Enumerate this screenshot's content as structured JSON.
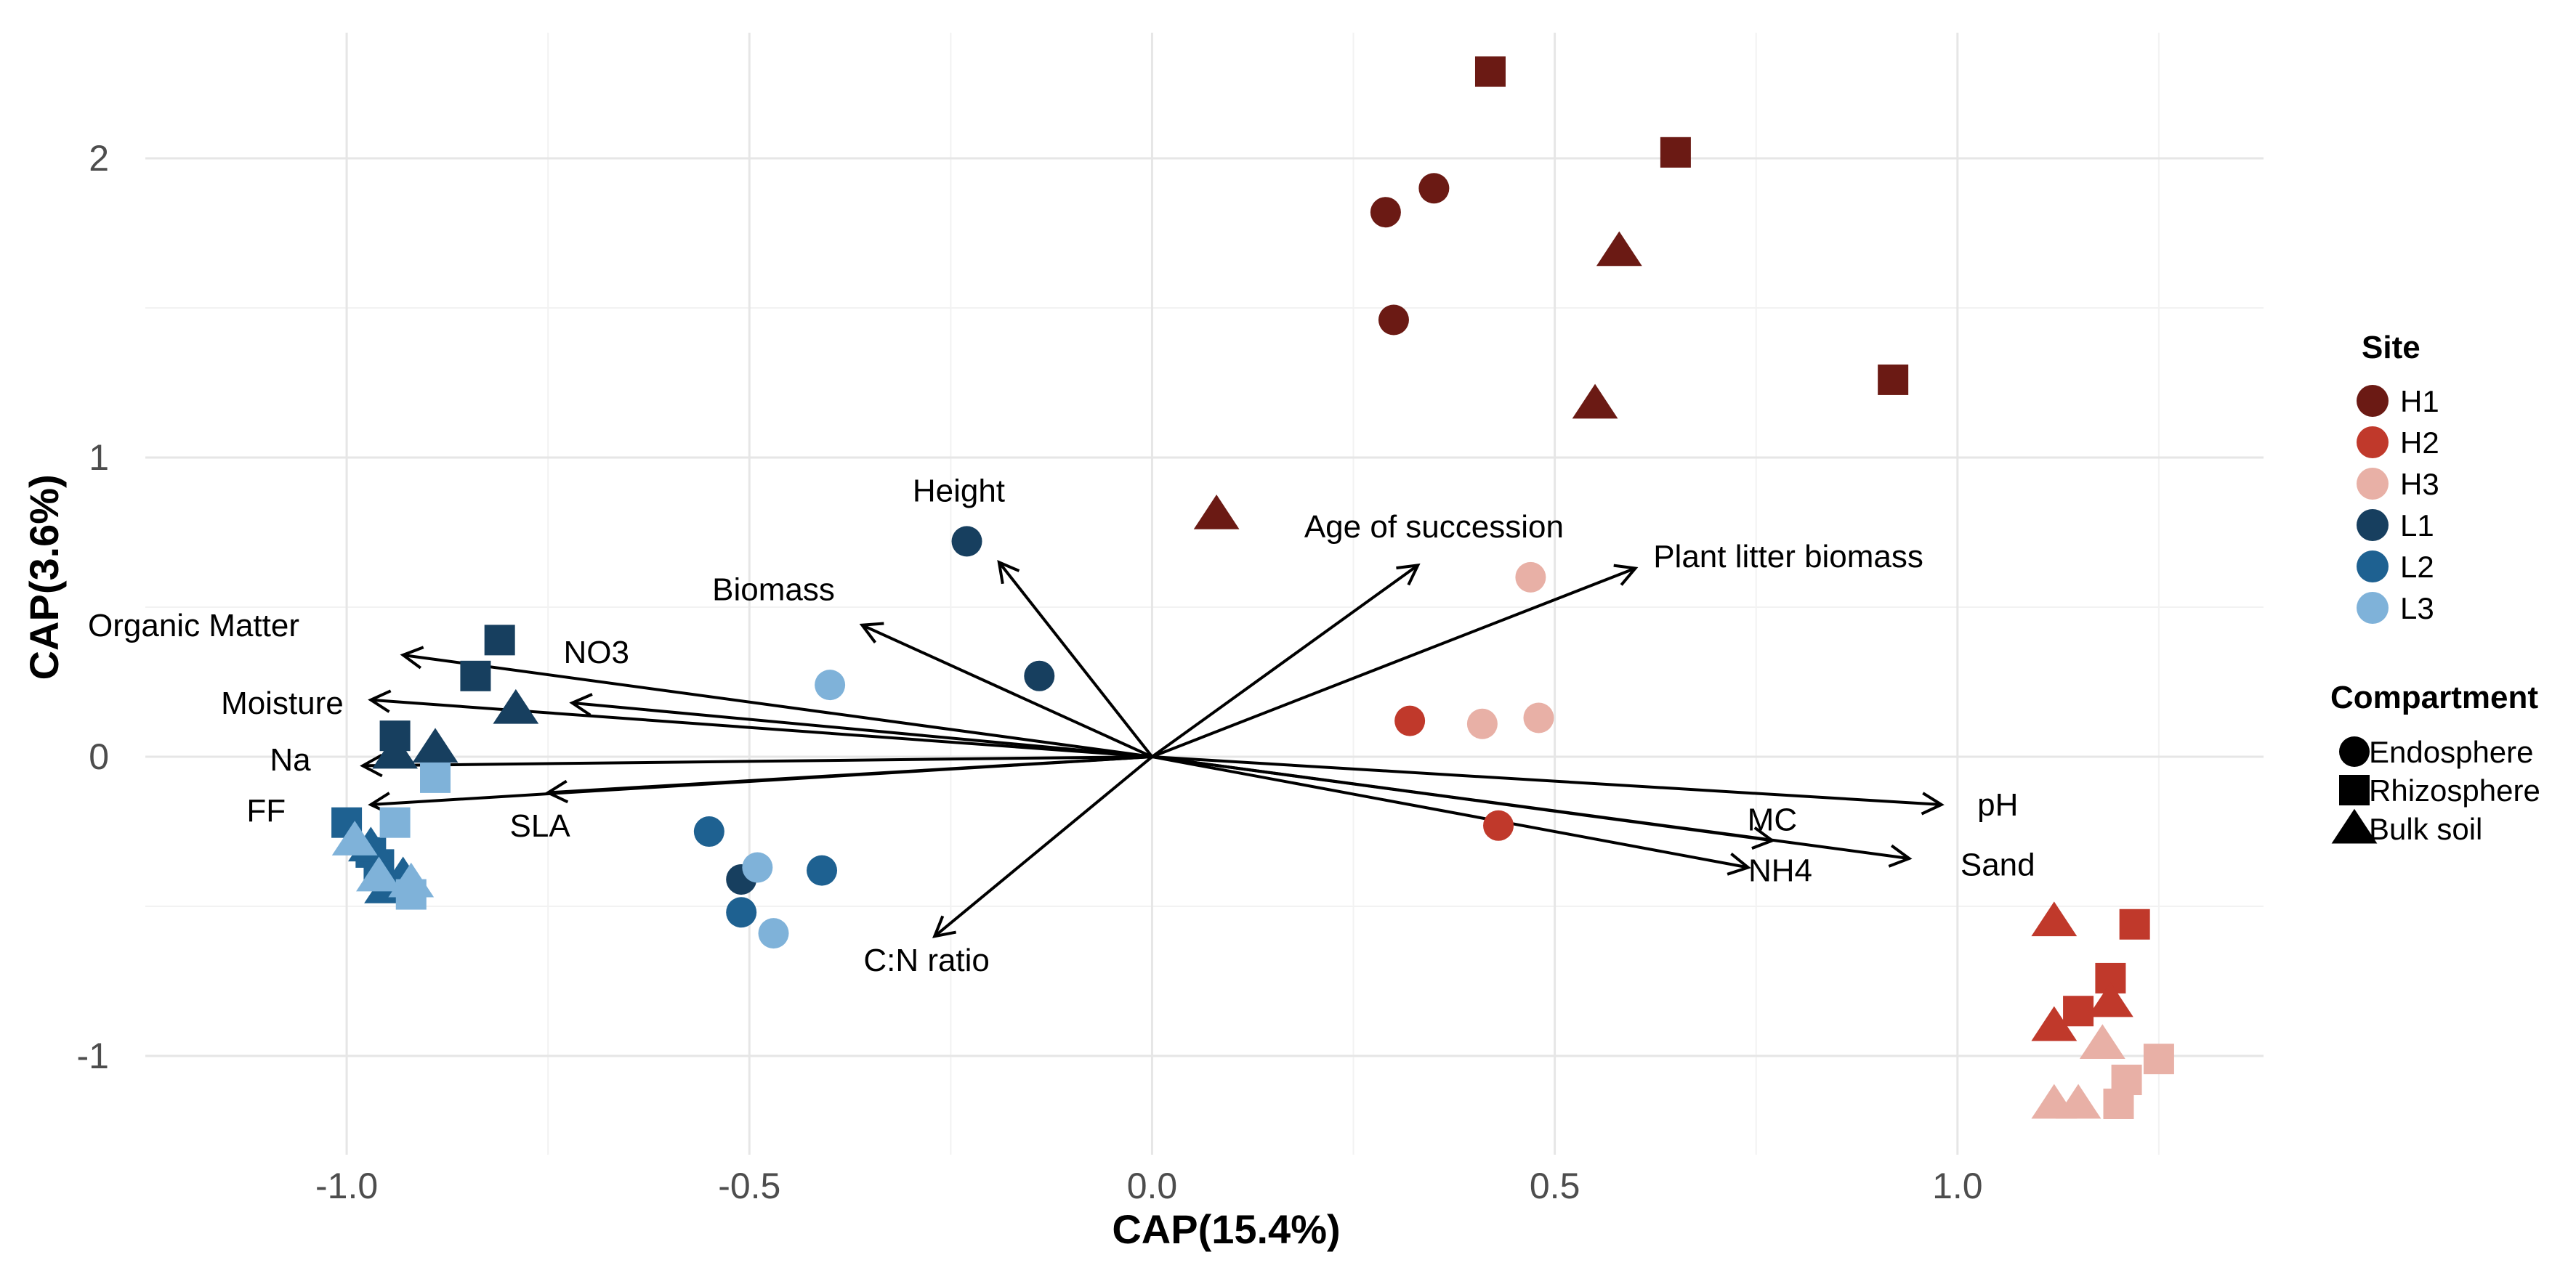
{
  "chart_data": {
    "type": "scatter",
    "xlabel": "CAP(15.4%)",
    "ylabel": "CAP(3.6%)",
    "xlim": [
      -1.25,
      1.38
    ],
    "ylim": [
      -1.33,
      2.42
    ],
    "x_ticks": [
      -1.0,
      -0.5,
      0.0,
      0.5,
      1.0
    ],
    "x_tick_labels": [
      "-1.0",
      "-0.5",
      "0.0",
      "0.5",
      "1.0"
    ],
    "y_ticks": [
      -1,
      0,
      1,
      2
    ],
    "y_tick_labels": [
      "-1",
      "0",
      "1",
      "2"
    ],
    "grid": true,
    "site_colors": {
      "H1": "#6b1a14",
      "H2": "#c0392b",
      "H3": "#e8b0a6",
      "L1": "#173f5f",
      "L2": "#1e6191",
      "L3": "#7fb2d9"
    },
    "legend": {
      "placement": "right",
      "site_title": "Site",
      "sites": [
        "H1",
        "H2",
        "H3",
        "L1",
        "L2",
        "L3"
      ],
      "compartment_title": "Compartment",
      "compartments": [
        {
          "name": "Endosphere",
          "shape": "circle"
        },
        {
          "name": "Rhizosphere",
          "shape": "square"
        },
        {
          "name": "Bulk soil",
          "shape": "triangle"
        }
      ]
    },
    "points": [
      {
        "site": "H1",
        "shape": "circle",
        "x": 0.29,
        "y": 1.82
      },
      {
        "site": "H1",
        "shape": "circle",
        "x": 0.35,
        "y": 1.9
      },
      {
        "site": "H1",
        "shape": "circle",
        "x": 0.3,
        "y": 1.46
      },
      {
        "site": "H1",
        "shape": "square",
        "x": 0.42,
        "y": 2.29
      },
      {
        "site": "H1",
        "shape": "square",
        "x": 0.65,
        "y": 2.02
      },
      {
        "site": "H1",
        "shape": "square",
        "x": 0.92,
        "y": 1.26
      },
      {
        "site": "H1",
        "shape": "triangle",
        "x": 0.58,
        "y": 1.69
      },
      {
        "site": "H1",
        "shape": "triangle",
        "x": 0.55,
        "y": 1.18
      },
      {
        "site": "H1",
        "shape": "triangle",
        "x": 0.08,
        "y": 0.81
      },
      {
        "site": "H2",
        "shape": "circle",
        "x": 0.32,
        "y": 0.12
      },
      {
        "site": "H2",
        "shape": "circle",
        "x": 0.43,
        "y": -0.23
      },
      {
        "site": "H2",
        "shape": "square",
        "x": 1.22,
        "y": -0.56
      },
      {
        "site": "H2",
        "shape": "square",
        "x": 1.19,
        "y": -0.74
      },
      {
        "site": "H2",
        "shape": "square",
        "x": 1.15,
        "y": -0.85
      },
      {
        "site": "H2",
        "shape": "triangle",
        "x": 1.12,
        "y": -0.55
      },
      {
        "site": "H2",
        "shape": "triangle",
        "x": 1.12,
        "y": -0.9
      },
      {
        "site": "H2",
        "shape": "triangle",
        "x": 1.19,
        "y": -0.82
      },
      {
        "site": "H3",
        "shape": "circle",
        "x": 0.47,
        "y": 0.6
      },
      {
        "site": "H3",
        "shape": "circle",
        "x": 0.41,
        "y": 0.11
      },
      {
        "site": "H3",
        "shape": "circle",
        "x": 0.48,
        "y": 0.13
      },
      {
        "site": "H3",
        "shape": "square",
        "x": 1.25,
        "y": -1.01
      },
      {
        "site": "H3",
        "shape": "square",
        "x": 1.21,
        "y": -1.08
      },
      {
        "site": "H3",
        "shape": "square",
        "x": 1.2,
        "y": -1.16
      },
      {
        "site": "H3",
        "shape": "triangle",
        "x": 1.18,
        "y": -0.96
      },
      {
        "site": "H3",
        "shape": "triangle",
        "x": 1.12,
        "y": -1.16
      },
      {
        "site": "H3",
        "shape": "triangle",
        "x": 1.15,
        "y": -1.16
      },
      {
        "site": "L1",
        "shape": "circle",
        "x": -0.23,
        "y": 0.72
      },
      {
        "site": "L1",
        "shape": "circle",
        "x": -0.14,
        "y": 0.27
      },
      {
        "site": "L1",
        "shape": "circle",
        "x": -0.51,
        "y": -0.41
      },
      {
        "site": "L1",
        "shape": "square",
        "x": -0.81,
        "y": 0.39
      },
      {
        "site": "L1",
        "shape": "square",
        "x": -0.84,
        "y": 0.27
      },
      {
        "site": "L1",
        "shape": "square",
        "x": -0.94,
        "y": 0.07
      },
      {
        "site": "L1",
        "shape": "triangle",
        "x": -0.79,
        "y": 0.16
      },
      {
        "site": "L1",
        "shape": "triangle",
        "x": -0.89,
        "y": 0.03
      },
      {
        "site": "L1",
        "shape": "triangle",
        "x": -0.94,
        "y": 0.01
      },
      {
        "site": "L2",
        "shape": "circle",
        "x": -0.55,
        "y": -0.25
      },
      {
        "site": "L2",
        "shape": "circle",
        "x": -0.51,
        "y": -0.52
      },
      {
        "site": "L2",
        "shape": "circle",
        "x": -0.41,
        "y": -0.38
      },
      {
        "site": "L2",
        "shape": "square",
        "x": -1.0,
        "y": -0.22
      },
      {
        "site": "L2",
        "shape": "square",
        "x": -0.97,
        "y": -0.32
      },
      {
        "site": "L2",
        "shape": "square",
        "x": -0.96,
        "y": -0.36
      },
      {
        "site": "L2",
        "shape": "triangle",
        "x": -0.95,
        "y": -0.44
      },
      {
        "site": "L2",
        "shape": "triangle",
        "x": -0.93,
        "y": -0.4
      },
      {
        "site": "L2",
        "shape": "triangle",
        "x": -0.97,
        "y": -0.3
      },
      {
        "site": "L3",
        "shape": "circle",
        "x": -0.4,
        "y": 0.24
      },
      {
        "site": "L3",
        "shape": "circle",
        "x": -0.49,
        "y": -0.37
      },
      {
        "site": "L3",
        "shape": "circle",
        "x": -0.47,
        "y": -0.59
      },
      {
        "site": "L3",
        "shape": "square",
        "x": -0.89,
        "y": -0.07
      },
      {
        "site": "L3",
        "shape": "square",
        "x": -0.94,
        "y": -0.22
      },
      {
        "site": "L3",
        "shape": "square",
        "x": -0.92,
        "y": -0.46
      },
      {
        "site": "L3",
        "shape": "triangle",
        "x": -0.99,
        "y": -0.28
      },
      {
        "site": "L3",
        "shape": "triangle",
        "x": -0.92,
        "y": -0.42
      },
      {
        "site": "L3",
        "shape": "triangle",
        "x": -0.96,
        "y": -0.4
      }
    ],
    "vectors": [
      {
        "name": "Height",
        "x": -0.19,
        "y": 0.65,
        "lx": -0.24,
        "ly": 0.89
      },
      {
        "name": "Biomass",
        "x": -0.36,
        "y": 0.44,
        "lx": -0.47,
        "ly": 0.56
      },
      {
        "name": "Organic Matter",
        "x": -0.93,
        "y": 0.34,
        "lx": -1.19,
        "ly": 0.44
      },
      {
        "name": "NO3",
        "x": -0.72,
        "y": 0.18,
        "lx": -0.69,
        "ly": 0.35
      },
      {
        "name": "Moisture",
        "x": -0.97,
        "y": 0.19,
        "lx": -1.08,
        "ly": 0.18
      },
      {
        "name": "Na",
        "x": -0.98,
        "y": -0.03,
        "lx": -1.07,
        "ly": -0.01
      },
      {
        "name": "FF",
        "x": -0.97,
        "y": -0.16,
        "lx": -1.1,
        "ly": -0.18
      },
      {
        "name": "SLA",
        "x": -0.75,
        "y": -0.12,
        "lx": -0.76,
        "ly": -0.23
      },
      {
        "name": "C:N ratio",
        "x": -0.27,
        "y": -0.6,
        "lx": -0.28,
        "ly": -0.68
      },
      {
        "name": "Age of succession",
        "x": 0.33,
        "y": 0.64,
        "lx": 0.35,
        "ly": 0.77
      },
      {
        "name": "Plant litter biomass",
        "x": 0.6,
        "y": 0.63,
        "lx": 0.79,
        "ly": 0.67
      },
      {
        "name": "pH",
        "x": 0.98,
        "y": -0.16,
        "lx": 1.05,
        "ly": -0.16
      },
      {
        "name": "MC",
        "x": 0.77,
        "y": -0.28,
        "lx": 0.77,
        "ly": -0.21
      },
      {
        "name": "NH4",
        "x": 0.74,
        "y": -0.37,
        "lx": 0.78,
        "ly": -0.38
      },
      {
        "name": "Sand",
        "x": 0.94,
        "y": -0.34,
        "lx": 1.05,
        "ly": -0.36
      }
    ]
  }
}
